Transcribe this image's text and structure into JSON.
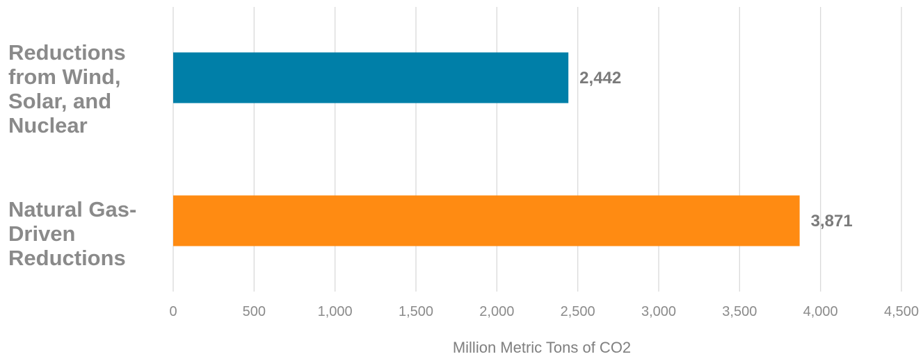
{
  "chart_data": {
    "type": "bar",
    "orientation": "horizontal",
    "categories": [
      "Reductions from Wind, Solar, and Nuclear",
      "Natural Gas-Driven Reductions"
    ],
    "values": [
      2442,
      3871
    ],
    "value_labels": [
      "2,442",
      "3,871"
    ],
    "bar_colors": [
      "#007fa8",
      "#ff8b12"
    ],
    "xlabel": "Million Metric Tons of CO2",
    "xlim": [
      0,
      4500
    ],
    "x_ticks": [
      0,
      500,
      1000,
      1500,
      2000,
      2500,
      3000,
      3500,
      4000,
      4500
    ],
    "x_tick_labels": [
      "0",
      "500",
      "1,000",
      "1,500",
      "2,000",
      "2,500",
      "3,000",
      "3,500",
      "4,000",
      "4,500"
    ],
    "grid": "vertical",
    "legend": "none"
  },
  "category_label_lines": [
    [
      "Reductions",
      "from Wind,",
      "Solar, and",
      "Nuclear"
    ],
    [
      "Natural Gas-",
      "Driven",
      "Reductions"
    ]
  ]
}
